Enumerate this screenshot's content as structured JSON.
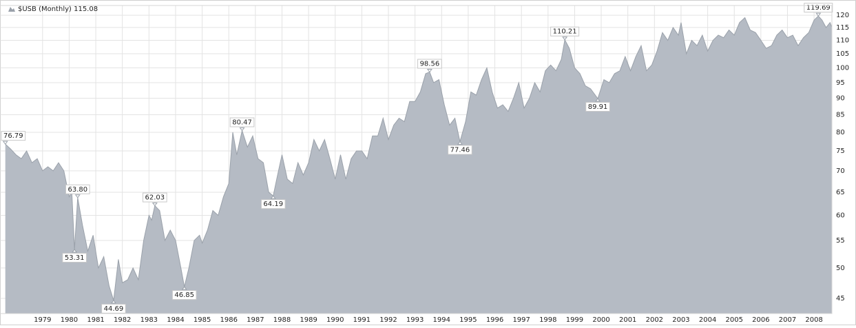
{
  "chart_data": {
    "type": "area",
    "title": "$USB (Monthly) 115.08",
    "log_scale": true,
    "grid": true,
    "color": "#b5bbc4",
    "line_color": "#9aa1aa",
    "xlim": [
      1977.4,
      2008.67
    ],
    "ylim": [
      42.7,
      124.1
    ],
    "xticks": [
      1979,
      1980,
      1981,
      1982,
      1983,
      1984,
      1985,
      1986,
      1987,
      1988,
      1989,
      1990,
      1991,
      1992,
      1993,
      1994,
      1995,
      1996,
      1997,
      1998,
      1999,
      2000,
      2001,
      2002,
      2003,
      2004,
      2005,
      2006,
      2007,
      2008
    ],
    "yticks": [
      45,
      50,
      55,
      60,
      65,
      70,
      75,
      80,
      85,
      90,
      95,
      100,
      105,
      110,
      115,
      120
    ],
    "x": [
      1977.6,
      1977.8,
      1978.0,
      1978.2,
      1978.4,
      1978.6,
      1978.8,
      1979.0,
      1979.2,
      1979.4,
      1979.6,
      1979.8,
      1980.0,
      1980.1,
      1980.2,
      1980.32,
      1980.5,
      1980.7,
      1980.9,
      1981.1,
      1981.3,
      1981.5,
      1981.67,
      1981.85,
      1982.0,
      1982.2,
      1982.4,
      1982.6,
      1982.8,
      1983.0,
      1983.1,
      1983.22,
      1983.4,
      1983.6,
      1983.8,
      1984.0,
      1984.2,
      1984.33,
      1984.5,
      1984.7,
      1984.9,
      1985.0,
      1985.2,
      1985.4,
      1985.6,
      1985.8,
      1986.0,
      1986.15,
      1986.3,
      1986.5,
      1986.7,
      1986.9,
      1987.1,
      1987.3,
      1987.5,
      1987.67,
      1987.8,
      1988.0,
      1988.2,
      1988.4,
      1988.6,
      1988.8,
      1989.0,
      1989.2,
      1989.4,
      1989.6,
      1989.8,
      1990.0,
      1990.2,
      1990.4,
      1990.6,
      1990.8,
      1991.0,
      1991.2,
      1991.4,
      1991.6,
      1991.8,
      1992.0,
      1992.2,
      1992.4,
      1992.6,
      1992.8,
      1993.0,
      1993.2,
      1993.4,
      1993.55,
      1993.7,
      1993.9,
      1994.1,
      1994.3,
      1994.5,
      1994.69,
      1994.9,
      1995.1,
      1995.3,
      1995.5,
      1995.7,
      1995.9,
      1996.1,
      1996.3,
      1996.5,
      1996.7,
      1996.9,
      1997.1,
      1997.3,
      1997.5,
      1997.7,
      1997.9,
      1998.1,
      1998.3,
      1998.5,
      1998.63,
      1998.8,
      1999.0,
      1999.2,
      1999.4,
      1999.6,
      1999.87,
      2000.1,
      2000.3,
      2000.5,
      2000.7,
      2000.9,
      2001.1,
      2001.3,
      2001.5,
      2001.7,
      2001.9,
      2002.1,
      2002.3,
      2002.5,
      2002.7,
      2002.9,
      2003.0,
      2003.2,
      2003.4,
      2003.6,
      2003.8,
      2004.0,
      2004.2,
      2004.4,
      2004.6,
      2004.8,
      2005.0,
      2005.2,
      2005.4,
      2005.6,
      2005.8,
      2006.0,
      2006.2,
      2006.4,
      2006.6,
      2006.8,
      2007.0,
      2007.2,
      2007.4,
      2007.6,
      2007.8,
      2008.0,
      2008.16,
      2008.3,
      2008.45,
      2008.6,
      2008.67
    ],
    "values": [
      76.79,
      75.5,
      74,
      73,
      75,
      72,
      73,
      70,
      71,
      70,
      72,
      70,
      64,
      65,
      53.31,
      63.8,
      58,
      53,
      56,
      50,
      52,
      47,
      44.69,
      51.5,
      47.5,
      48,
      50,
      48,
      55,
      60,
      59,
      62.03,
      61,
      55,
      57,
      55,
      50,
      46.85,
      50,
      55,
      56,
      54.5,
      57,
      61,
      60,
      64,
      67,
      80,
      74,
      80.47,
      76,
      79,
      73,
      72,
      65,
      64.19,
      68,
      74,
      68,
      67,
      72,
      69,
      72,
      78,
      75,
      78,
      73,
      68,
      74,
      68,
      73,
      75,
      75,
      73,
      79,
      79,
      84,
      78,
      82,
      84,
      83,
      89,
      89,
      92,
      98,
      98.56,
      95,
      96,
      88,
      82,
      84,
      77.46,
      83,
      92,
      91,
      96,
      100,
      92,
      87,
      88,
      86,
      90,
      95,
      87,
      90,
      95,
      92,
      99,
      101,
      99,
      103,
      110.21,
      107,
      100,
      98,
      94,
      93,
      89.91,
      96,
      95,
      98,
      99,
      104,
      99,
      104,
      108,
      99,
      101,
      106,
      113,
      110,
      115,
      112,
      117,
      105,
      110,
      108,
      112,
      106,
      110,
      112,
      111,
      114,
      112,
      117,
      119,
      114,
      113,
      110,
      107,
      108,
      112,
      114,
      111,
      112,
      108,
      111,
      113,
      118,
      119.69,
      118,
      115,
      117,
      115.08
    ],
    "annotations": [
      {
        "x": 1977.6,
        "value": 76.79,
        "label": "76.79",
        "position": "above"
      },
      {
        "x": 1980.2,
        "value": 53.31,
        "label": "53.31",
        "position": "below"
      },
      {
        "x": 1980.32,
        "value": 63.8,
        "label": "63.80",
        "position": "above"
      },
      {
        "x": 1981.67,
        "value": 44.69,
        "label": "44.69",
        "position": "below"
      },
      {
        "x": 1983.22,
        "value": 62.03,
        "label": "62.03",
        "position": "above"
      },
      {
        "x": 1984.33,
        "value": 46.85,
        "label": "46.85",
        "position": "below"
      },
      {
        "x": 1986.5,
        "value": 80.47,
        "label": "80.47",
        "position": "above"
      },
      {
        "x": 1987.67,
        "value": 64.19,
        "label": "64.19",
        "position": "below"
      },
      {
        "x": 1993.55,
        "value": 98.56,
        "label": "98.56",
        "position": "above"
      },
      {
        "x": 1994.69,
        "value": 77.46,
        "label": "77.46",
        "position": "below"
      },
      {
        "x": 1998.63,
        "value": 110.21,
        "label": "110.21",
        "position": "above"
      },
      {
        "x": 1999.87,
        "value": 89.91,
        "label": "89.91",
        "position": "below"
      },
      {
        "x": 2008.16,
        "value": 119.69,
        "label": "119.69",
        "position": "above"
      }
    ]
  }
}
